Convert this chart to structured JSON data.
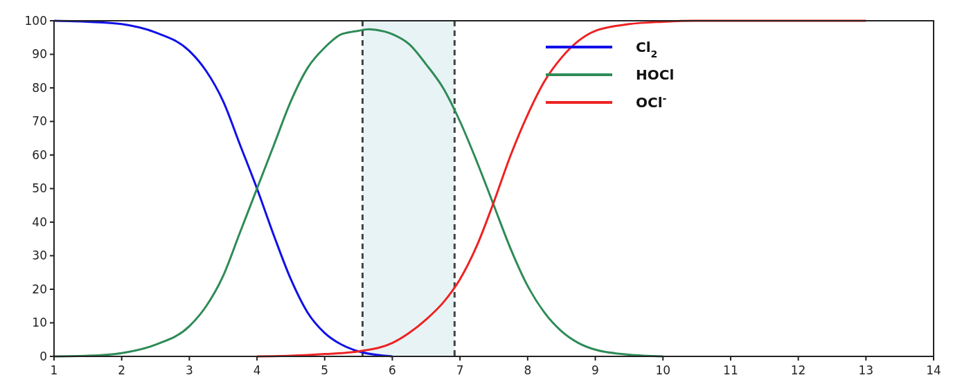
{
  "chart_data": {
    "type": "line",
    "xlim": [
      1,
      14
    ],
    "xticks": [
      1,
      2,
      3,
      4,
      5,
      6,
      7,
      8,
      9,
      10,
      11,
      12,
      13,
      14
    ],
    "ylim": [
      0,
      100
    ],
    "yticks": [
      0,
      10,
      20,
      30,
      40,
      50,
      60,
      70,
      80,
      90,
      100
    ],
    "grid": false,
    "legend": "top right",
    "line_style": "solid",
    "series": [
      {
        "name": "Cl$_{2}$",
        "color": "#1010e8",
        "x": [
          1,
          1.5,
          2,
          2.5,
          3,
          3.25,
          3.5,
          3.75,
          4,
          4.25,
          4.5,
          4.75,
          5,
          5.25,
          5.5,
          5.75,
          6
        ],
        "values": [
          100,
          99.7,
          99,
          96.5,
          91,
          85,
          76,
          63,
          50,
          36,
          23,
          13,
          7,
          3.5,
          1.5,
          0.5,
          0
        ]
      },
      {
        "name": "HOCl",
        "color": "#2e8b57",
        "x": [
          1,
          1.5,
          2,
          2.5,
          3,
          3.25,
          3.5,
          3.75,
          4,
          4.25,
          4.5,
          4.75,
          5,
          5.25,
          5.5,
          5.65,
          5.75,
          6,
          6.25,
          6.5,
          6.75,
          7,
          7.25,
          7.5,
          7.75,
          8,
          8.25,
          8.5,
          8.75,
          9,
          9.5,
          10
        ],
        "values": [
          0,
          0.2,
          1,
          3.5,
          9,
          15,
          24,
          37,
          50,
          63,
          76,
          86,
          92,
          96,
          97,
          97.5,
          97.3,
          96,
          93,
          87,
          80,
          70,
          58,
          45,
          32,
          21,
          13,
          7.5,
          4,
          2,
          0.5,
          0
        ]
      },
      {
        "name": "OCl$^{-}$",
        "color": "#ee2222",
        "x": [
          4,
          4.5,
          5,
          5.5,
          6,
          6.25,
          6.5,
          6.75,
          7,
          7.25,
          7.5,
          7.75,
          8,
          8.25,
          8.5,
          8.75,
          9,
          9.5,
          10,
          10.5,
          13
        ],
        "values": [
          0,
          0.2,
          0.7,
          1.5,
          4,
          7,
          11,
          16,
          23,
          33,
          46,
          60,
          72,
          82,
          89,
          94,
          97,
          99,
          99.7,
          100,
          100
        ]
      }
    ],
    "bands": [
      {
        "axis": "x",
        "from": 5.56,
        "to": 6.92,
        "color": "#e8f3f5"
      }
    ],
    "ref_lines": [
      {
        "axis": "x",
        "value": 5.56,
        "color": "#444444",
        "line_style": "dashed"
      },
      {
        "axis": "x",
        "value": 6.92,
        "color": "#444444",
        "line_style": "dashed"
      }
    ]
  }
}
